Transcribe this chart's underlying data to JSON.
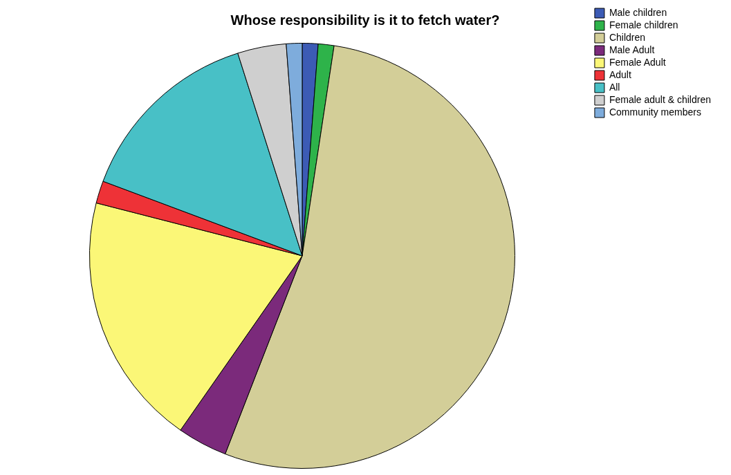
{
  "chart_data": {
    "type": "pie",
    "title": "Whose responsibility is it to fetch water?",
    "categories": [
      "Male children",
      "Female children",
      "Children",
      "Male Adult",
      "Female Adult",
      "Adult",
      "All",
      "Female adult & children",
      "Community members"
    ],
    "values": [
      1.2,
      1.2,
      53.5,
      3.8,
      19.3,
      1.7,
      14.4,
      3.7,
      1.2
    ],
    "colors": [
      "#3c5bb5",
      "#2eb34a",
      "#d3ce98",
      "#7b2a7b",
      "#fbf777",
      "#ee3237",
      "#48c0c6",
      "#cfcfcf",
      "#7eacdc"
    ],
    "legend": "top right"
  }
}
